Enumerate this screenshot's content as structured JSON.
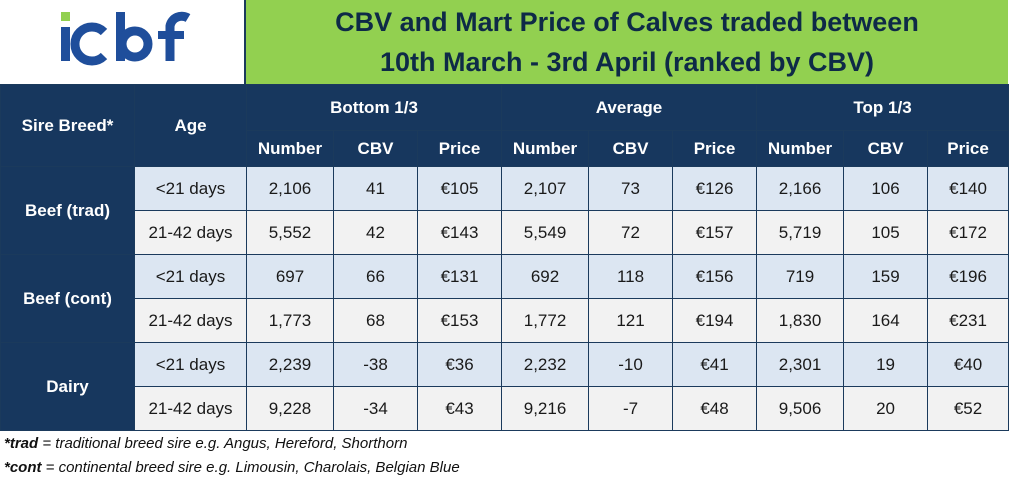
{
  "logo": {
    "text": "icbf",
    "color": "#1f4e9b",
    "accent": "#92d050"
  },
  "title": {
    "line1": "CBV and Mart Price of Calves traded between",
    "line2": "10th March - 3rd April  (ranked by CBV)"
  },
  "headers": {
    "sire_breed": "Sire Breed*",
    "age": "Age",
    "groups": [
      "Bottom 1/3",
      "Average",
      "Top 1/3"
    ],
    "subcols": [
      "Number",
      "CBV",
      "Price"
    ]
  },
  "rows": [
    {
      "breed": "Beef (trad)",
      "age": "<21 days",
      "cells": [
        "2,106",
        "41",
        "€105",
        "2,107",
        "73",
        "€126",
        "2,166",
        "106",
        "€140"
      ]
    },
    {
      "breed": "Beef (trad)",
      "age": "21-42 days",
      "cells": [
        "5,552",
        "42",
        "€143",
        "5,549",
        "72",
        "€157",
        "5,719",
        "105",
        "€172"
      ]
    },
    {
      "breed": "Beef (cont)",
      "age": "<21 days",
      "cells": [
        "697",
        "66",
        "€131",
        "692",
        "118",
        "€156",
        "719",
        "159",
        "€196"
      ]
    },
    {
      "breed": "Beef (cont)",
      "age": "21-42 days",
      "cells": [
        "1,773",
        "68",
        "€153",
        "1,772",
        "121",
        "€194",
        "1,830",
        "164",
        "€231"
      ]
    },
    {
      "breed": "Dairy",
      "age": "<21 days",
      "cells": [
        "2,239",
        "-38",
        "€36",
        "2,232",
        "-10",
        "€41",
        "2,301",
        "19",
        "€40"
      ]
    },
    {
      "breed": "Dairy",
      "age": "21-42 days",
      "cells": [
        "9,228",
        "-34",
        "€43",
        "9,216",
        "-7",
        "€48",
        "9,506",
        "20",
        "€52"
      ]
    }
  ],
  "footnotes": [
    {
      "key": "*trad",
      "text": " = traditional breed sire e.g. Angus, Hereford, Shorthorn"
    },
    {
      "key": "*cont",
      "text": " = continental breed sire e.g. Limousin, Charolais, Belgian Blue"
    }
  ],
  "colors": {
    "header_bg": "#17375e",
    "title_bg": "#92d050",
    "row_blue": "#dce6f2",
    "row_grey": "#f2f2f2"
  }
}
